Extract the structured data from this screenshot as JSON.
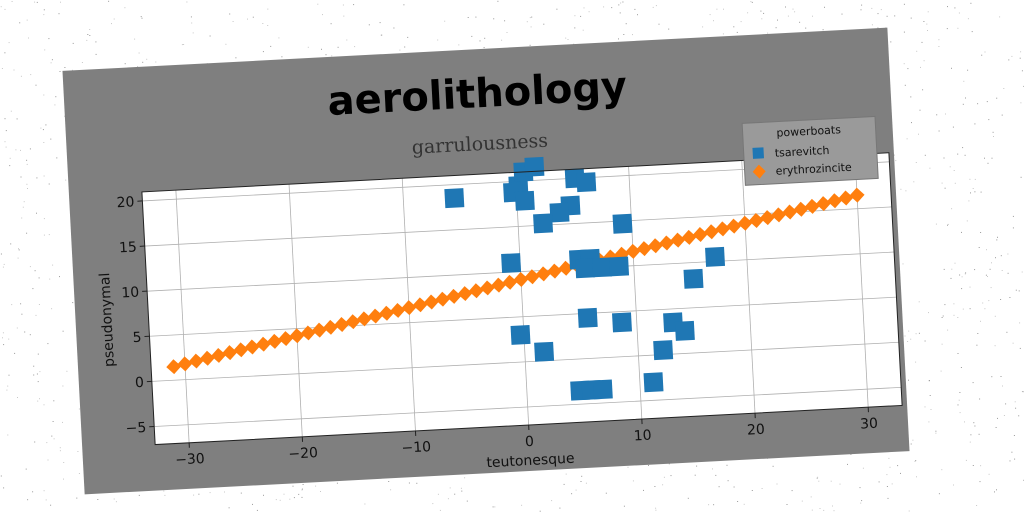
{
  "chart_data": {
    "type": "scatter",
    "title": "aerolithology",
    "subtitle": "garrulousness",
    "xlabel": "teutonesque",
    "ylabel": "pseudonymal",
    "xlim": [
      -33,
      33
    ],
    "ylim": [
      -7,
      21
    ],
    "xticks": [
      -30,
      -20,
      -10,
      0,
      10,
      20,
      30
    ],
    "yticks": [
      -5,
      0,
      5,
      10,
      15,
      20
    ],
    "grid": true,
    "legend": {
      "title": "powerboats",
      "placement": "top-right"
    },
    "series": [
      {
        "name": "tsarevitch",
        "marker": "square",
        "color": "#1f77b4",
        "points": [
          [
            -5.5,
            18.5
          ],
          [
            0.2,
            19.5
          ],
          [
            0.7,
            21.0
          ],
          [
            1.7,
            21.5
          ],
          [
            -0.3,
            18.8
          ],
          [
            0.7,
            17.8
          ],
          [
            5.2,
            20.0
          ],
          [
            6.2,
            19.5
          ],
          [
            4.7,
            17.0
          ],
          [
            3.7,
            16.3
          ],
          [
            2.2,
            15.2
          ],
          [
            9.2,
            14.7
          ],
          [
            -0.8,
            11.0
          ],
          [
            5.2,
            11.0
          ],
          [
            6.2,
            11.0
          ],
          [
            5.7,
            10.0
          ],
          [
            7.2,
            10.0
          ],
          [
            8.7,
            10.0
          ],
          [
            17.2,
            10.5
          ],
          [
            15.2,
            8.2
          ],
          [
            -0.3,
            3.0
          ],
          [
            1.7,
            1.0
          ],
          [
            5.7,
            4.5
          ],
          [
            8.7,
            3.8
          ],
          [
            13.2,
            3.5
          ],
          [
            14.2,
            2.5
          ],
          [
            12.2,
            0.5
          ],
          [
            11.2,
            -3.0
          ],
          [
            4.7,
            -3.5
          ],
          [
            5.7,
            -3.5
          ],
          [
            6.7,
            -3.5
          ]
        ]
      },
      {
        "name": "erythrozincite",
        "marker": "diamond",
        "color": "#ff7f0e",
        "x_start": -31,
        "x_end": 30,
        "count": 62,
        "y_start": 1.5,
        "y_end": 16.5
      }
    ]
  }
}
